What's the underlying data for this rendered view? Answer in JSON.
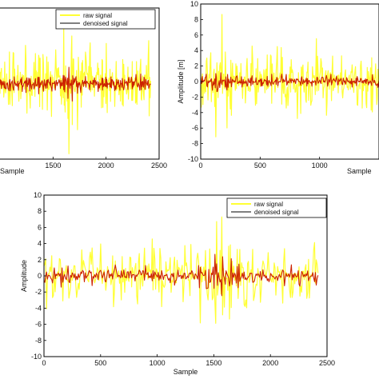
{
  "chart_data": [
    {
      "type": "line",
      "title": "",
      "xlabel": "Sample",
      "ylabel": "",
      "xlim": [
        1000,
        2500
      ],
      "ylim": [
        -10,
        10
      ],
      "x_ticks": [
        1500,
        2000,
        2500
      ],
      "y_ticks": [],
      "legend": {
        "placement": "top",
        "entries": [
          "raw signal",
          "denoised signal"
        ]
      },
      "series": [
        {
          "name": "raw signal",
          "color": "#ffff33",
          "amplitude": 7,
          "x_range": [
            1000,
            2420
          ]
        },
        {
          "name": "denoised signal",
          "color": "#cc2200",
          "amplitude": 1.6,
          "x_range": [
            1000,
            2420
          ]
        }
      ]
    },
    {
      "type": "line",
      "title": "",
      "xlabel": "Sample",
      "ylabel": "Amplitude [m]",
      "xlim": [
        0,
        1500
      ],
      "ylim": [
        -10,
        10
      ],
      "x_ticks": [
        0,
        500,
        1000
      ],
      "y_ticks": [
        -10,
        -8,
        -6,
        -4,
        -2,
        0,
        2,
        4,
        6,
        8,
        10
      ],
      "legend": {
        "placement": "none",
        "entries": []
      },
      "series": [
        {
          "name": "",
          "color": "#ffff33",
          "amplitude": 6,
          "x_range": [
            0,
            1500
          ]
        },
        {
          "name": "",
          "color": "#cc2200",
          "amplitude": 1.2,
          "x_range": [
            0,
            1500
          ]
        }
      ]
    },
    {
      "type": "line",
      "title": "",
      "xlabel": "Sample",
      "ylabel": "Amplitude",
      "xlim": [
        0,
        2500
      ],
      "ylim": [
        -10,
        10
      ],
      "x_ticks": [
        0,
        500,
        1000,
        1500,
        2000,
        2500
      ],
      "x_tick_labels": [
        "0",
        "500",
        "1000",
        "1500",
        "2000",
        "2500"
      ],
      "y_ticks": [
        -10,
        -8,
        -6,
        -4,
        -2,
        0,
        2,
        4,
        6,
        8,
        10
      ],
      "legend": {
        "placement": "top-right",
        "entries": [
          "raw signal",
          "denoised signal"
        ]
      },
      "series": [
        {
          "name": "raw signal",
          "color": "#ffff33",
          "amplitude": 6,
          "x_range": [
            0,
            2420
          ]
        },
        {
          "name": "denoised signal",
          "color": "#cc2200",
          "amplitude": 1.6,
          "x_range": [
            0,
            2420
          ]
        }
      ]
    }
  ]
}
